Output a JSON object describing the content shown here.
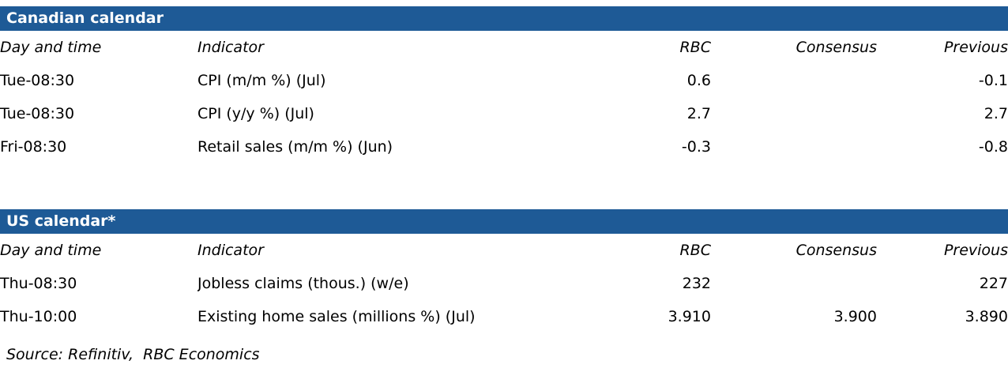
{
  "colors": {
    "header_bg": "#1e5a96",
    "header_text": "#ffffff",
    "body_text": "#000000"
  },
  "tables": [
    {
      "title": "Canadian calendar",
      "columns": [
        "Day and time",
        "Indicator",
        "RBC",
        "Consensus",
        "Previous"
      ],
      "rows": [
        [
          "Tue-08:30",
          "CPI (m/m %) (Jul)",
          "0.6",
          "",
          "-0.1"
        ],
        [
          "Tue-08:30",
          "CPI (y/y %) (Jul)",
          "2.7",
          "",
          "2.7"
        ],
        [
          "Fri-08:30",
          "Retail sales (m/m %) (Jun)",
          "-0.3",
          "",
          "-0.8"
        ]
      ]
    },
    {
      "title": "US calendar*",
      "columns": [
        "Day and time",
        "Indicator",
        "RBC",
        "Consensus",
        "Previous"
      ],
      "rows": [
        [
          "Thu-08:30",
          "Jobless claims (thous.) (w/e)",
          "232",
          "",
          "227"
        ],
        [
          "Thu-10:00",
          "Existing home sales (millions %) (Jul)",
          "3.910",
          "3.900",
          "3.890"
        ]
      ]
    }
  ],
  "source": "Source: Refinitiv,  RBC Economics"
}
